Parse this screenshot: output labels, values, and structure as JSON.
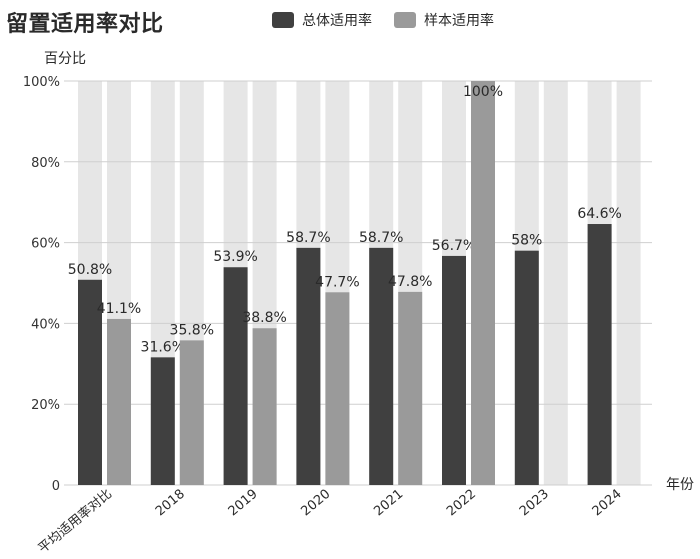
{
  "chart_data": {
    "type": "bar",
    "title": "留置适用率对比",
    "ylabel": "百分比",
    "xlabel": "年份",
    "ylim": [
      0,
      100
    ],
    "yticks": [
      "0",
      "20%",
      "40%",
      "60%",
      "80%",
      "100%"
    ],
    "grid": true,
    "legend_position": "top",
    "categories": [
      "平均适用率对比",
      "2018",
      "2019",
      "2020",
      "2021",
      "2022",
      "2023",
      "2024"
    ],
    "series": [
      {
        "name": "总体适用率",
        "color": "#404040",
        "values": [
          50.8,
          31.6,
          53.9,
          58.7,
          58.7,
          56.7,
          58,
          64.6
        ],
        "labels": [
          "50.8%",
          "31.6%",
          "53.9%",
          "58.7%",
          "58.7%",
          "56.7%",
          "58%",
          "64.6%"
        ]
      },
      {
        "name": "样本适用率",
        "color": "#9a9a9a",
        "values": [
          41.1,
          35.8,
          38.8,
          47.7,
          47.8,
          100,
          null,
          null
        ],
        "labels": [
          "41.1%",
          "35.8%",
          "38.8%",
          "47.7%",
          "47.8%",
          "100%",
          "",
          ""
        ]
      }
    ],
    "background_bar_color": "#e6e6e6"
  }
}
